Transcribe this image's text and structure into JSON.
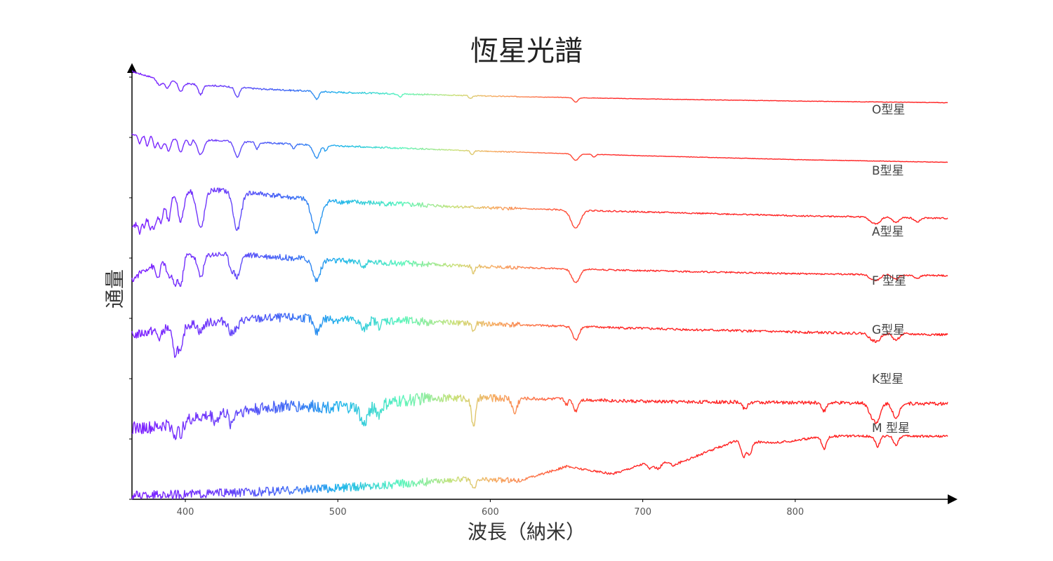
{
  "chart_data": {
    "type": "line",
    "title": "恆星光譜",
    "xlabel": "波長（納米）",
    "ylabel": "通量",
    "xlim": [
      365,
      900
    ],
    "x_ticks": [
      400,
      500,
      600,
      700,
      800
    ],
    "grid": false,
    "legend": "inline-right",
    "line_style": "rainbow-by-wavelength",
    "series": [
      {
        "name": "O型星",
        "continuum": [
          [
            365,
            1.0
          ],
          [
            380,
            0.88
          ],
          [
            400,
            0.78
          ],
          [
            450,
            0.68
          ],
          [
            500,
            0.62
          ],
          [
            600,
            0.55
          ],
          [
            700,
            0.5
          ],
          [
            800,
            0.46
          ],
          [
            900,
            0.43
          ]
        ],
        "absorption": [
          [
            383,
            0.12,
            1.5
          ],
          [
            388,
            0.14,
            1.5
          ],
          [
            397,
            0.16,
            1.5
          ],
          [
            410,
            0.18,
            1.5
          ],
          [
            434,
            0.18,
            1.5
          ],
          [
            486,
            0.14,
            1.5
          ],
          [
            541,
            0.05,
            1
          ],
          [
            587,
            0.06,
            1
          ],
          [
            656,
            0.08,
            1.5
          ]
        ],
        "noise": 0.03
      },
      {
        "name": "B型星",
        "continuum": [
          [
            365,
            0.94
          ],
          [
            400,
            0.86
          ],
          [
            450,
            0.79
          ],
          [
            500,
            0.73
          ],
          [
            600,
            0.63
          ],
          [
            700,
            0.55
          ],
          [
            800,
            0.48
          ],
          [
            900,
            0.43
          ]
        ],
        "absorption": [
          [
            370,
            0.15,
            1
          ],
          [
            375,
            0.18,
            1
          ],
          [
            380,
            0.2,
            1
          ],
          [
            384,
            0.22,
            1.5
          ],
          [
            389,
            0.24,
            1.5
          ],
          [
            397,
            0.26,
            1.5
          ],
          [
            403,
            0.12,
            1
          ],
          [
            410,
            0.28,
            2
          ],
          [
            434,
            0.28,
            2
          ],
          [
            447,
            0.12,
            1
          ],
          [
            471,
            0.08,
            1
          ],
          [
            486,
            0.24,
            2
          ],
          [
            492,
            0.1,
            1
          ],
          [
            588,
            0.08,
            1
          ],
          [
            656,
            0.12,
            2
          ],
          [
            668,
            0.05,
            1
          ]
        ],
        "noise": 0.03
      },
      {
        "name": "A型星",
        "continuum": [
          [
            365,
            0.25
          ],
          [
            372,
            0.48
          ],
          [
            380,
            0.7
          ],
          [
            395,
            0.86
          ],
          [
            420,
            0.86
          ],
          [
            450,
            0.8
          ],
          [
            470,
            0.74
          ],
          [
            500,
            0.68
          ],
          [
            600,
            0.58
          ],
          [
            700,
            0.52
          ],
          [
            800,
            0.46
          ],
          [
            900,
            0.42
          ]
        ],
        "absorption": [
          [
            370,
            0.2,
            1
          ],
          [
            373,
            0.24,
            1
          ],
          [
            377,
            0.3,
            1.5
          ],
          [
            380,
            0.34,
            1.5
          ],
          [
            384,
            0.38,
            1.5
          ],
          [
            389,
            0.42,
            1.5
          ],
          [
            397,
            0.48,
            2
          ],
          [
            410,
            0.6,
            2.5
          ],
          [
            434,
            0.6,
            2.5
          ],
          [
            486,
            0.5,
            3
          ],
          [
            656,
            0.28,
            3
          ],
          [
            850,
            0.07,
            2
          ],
          [
            854,
            0.09,
            2
          ],
          [
            866,
            0.08,
            2
          ],
          [
            880,
            0.06,
            2
          ]
        ],
        "noise": 0.08
      },
      {
        "name": "F 型星",
        "continuum": [
          [
            365,
            0.3
          ],
          [
            372,
            0.5
          ],
          [
            385,
            0.7
          ],
          [
            400,
            0.82
          ],
          [
            430,
            0.84
          ],
          [
            460,
            0.78
          ],
          [
            500,
            0.7
          ],
          [
            600,
            0.58
          ],
          [
            700,
            0.5
          ],
          [
            800,
            0.44
          ],
          [
            900,
            0.4
          ]
        ],
        "absorption": [
          [
            382,
            0.3,
            1.5
          ],
          [
            389,
            0.35,
            1.5
          ],
          [
            393,
            0.55,
            1.5
          ],
          [
            397,
            0.6,
            1.5
          ],
          [
            410,
            0.45,
            2
          ],
          [
            430,
            0.25,
            1.5
          ],
          [
            434,
            0.45,
            2
          ],
          [
            486,
            0.42,
            2.5
          ],
          [
            517,
            0.1,
            1.5
          ],
          [
            589,
            0.14,
            1
          ],
          [
            656,
            0.28,
            2.5
          ],
          [
            850,
            0.08,
            2
          ],
          [
            854,
            0.1,
            2
          ],
          [
            866,
            0.09,
            2
          ],
          [
            880,
            0.06,
            2
          ]
        ],
        "noise": 0.12
      },
      {
        "name": "G型星",
        "continuum": [
          [
            365,
            0.38
          ],
          [
            380,
            0.5
          ],
          [
            400,
            0.62
          ],
          [
            430,
            0.72
          ],
          [
            460,
            0.78
          ],
          [
            480,
            0.78
          ],
          [
            500,
            0.74
          ],
          [
            550,
            0.7
          ],
          [
            600,
            0.64
          ],
          [
            700,
            0.54
          ],
          [
            800,
            0.46
          ],
          [
            900,
            0.4
          ]
        ],
        "absorption": [
          [
            383,
            0.2,
            1.5
          ],
          [
            393,
            0.6,
            1.5
          ],
          [
            397,
            0.6,
            1.5
          ],
          [
            410,
            0.2,
            1.5
          ],
          [
            430,
            0.3,
            1.5
          ],
          [
            434,
            0.2,
            1.5
          ],
          [
            486,
            0.32,
            2
          ],
          [
            517,
            0.22,
            2
          ],
          [
            527,
            0.12,
            1.5
          ],
          [
            589,
            0.18,
            1
          ],
          [
            656,
            0.3,
            2
          ],
          [
            850,
            0.12,
            2
          ],
          [
            854,
            0.16,
            2
          ],
          [
            866,
            0.14,
            2
          ]
        ],
        "noise": 0.2
      },
      {
        "name": "K型星",
        "continuum": [
          [
            365,
            0.12
          ],
          [
            380,
            0.12
          ],
          [
            395,
            0.22
          ],
          [
            420,
            0.36
          ],
          [
            450,
            0.46
          ],
          [
            470,
            0.5
          ],
          [
            500,
            0.48
          ],
          [
            520,
            0.46
          ],
          [
            540,
            0.58
          ],
          [
            560,
            0.64
          ],
          [
            600,
            0.64
          ],
          [
            650,
            0.62
          ],
          [
            700,
            0.58
          ],
          [
            800,
            0.56
          ],
          [
            900,
            0.54
          ]
        ],
        "absorption": [
          [
            393,
            0.2,
            1.5
          ],
          [
            397,
            0.2,
            1.5
          ],
          [
            420,
            0.12,
            1.5
          ],
          [
            430,
            0.2,
            1.5
          ],
          [
            517,
            0.3,
            2
          ],
          [
            527,
            0.15,
            1.5
          ],
          [
            589,
            0.46,
            1.5
          ],
          [
            616,
            0.26,
            1.5
          ],
          [
            650,
            0.1,
            1
          ],
          [
            656,
            0.2,
            1.5
          ],
          [
            767,
            0.12,
            1.5
          ],
          [
            819,
            0.14,
            1.5
          ],
          [
            850,
            0.2,
            2
          ],
          [
            854,
            0.3,
            2
          ],
          [
            866,
            0.28,
            2
          ]
        ],
        "noise": 0.22
      },
      {
        "name": "M 型星",
        "continuum": [
          [
            365,
            0.06
          ],
          [
            400,
            0.08
          ],
          [
            450,
            0.12
          ],
          [
            500,
            0.18
          ],
          [
            550,
            0.26
          ],
          [
            580,
            0.32
          ],
          [
            620,
            0.3
          ],
          [
            650,
            0.52
          ],
          [
            680,
            0.4
          ],
          [
            700,
            0.56
          ],
          [
            705,
            0.68
          ],
          [
            720,
            0.54
          ],
          [
            760,
            0.92
          ],
          [
            790,
            0.9
          ],
          [
            820,
            1.0
          ],
          [
            860,
            1.0
          ],
          [
            900,
            1.0
          ]
        ],
        "absorption": [
          [
            589,
            0.16,
            1.5
          ],
          [
            705,
            0.18,
            2
          ],
          [
            710,
            0.14,
            2
          ],
          [
            766,
            0.24,
            1.5
          ],
          [
            770,
            0.2,
            1.5
          ],
          [
            819,
            0.2,
            1.5
          ],
          [
            854,
            0.16,
            1.5
          ],
          [
            866,
            0.14,
            1.5
          ]
        ],
        "noise": 0.14
      }
    ]
  }
}
